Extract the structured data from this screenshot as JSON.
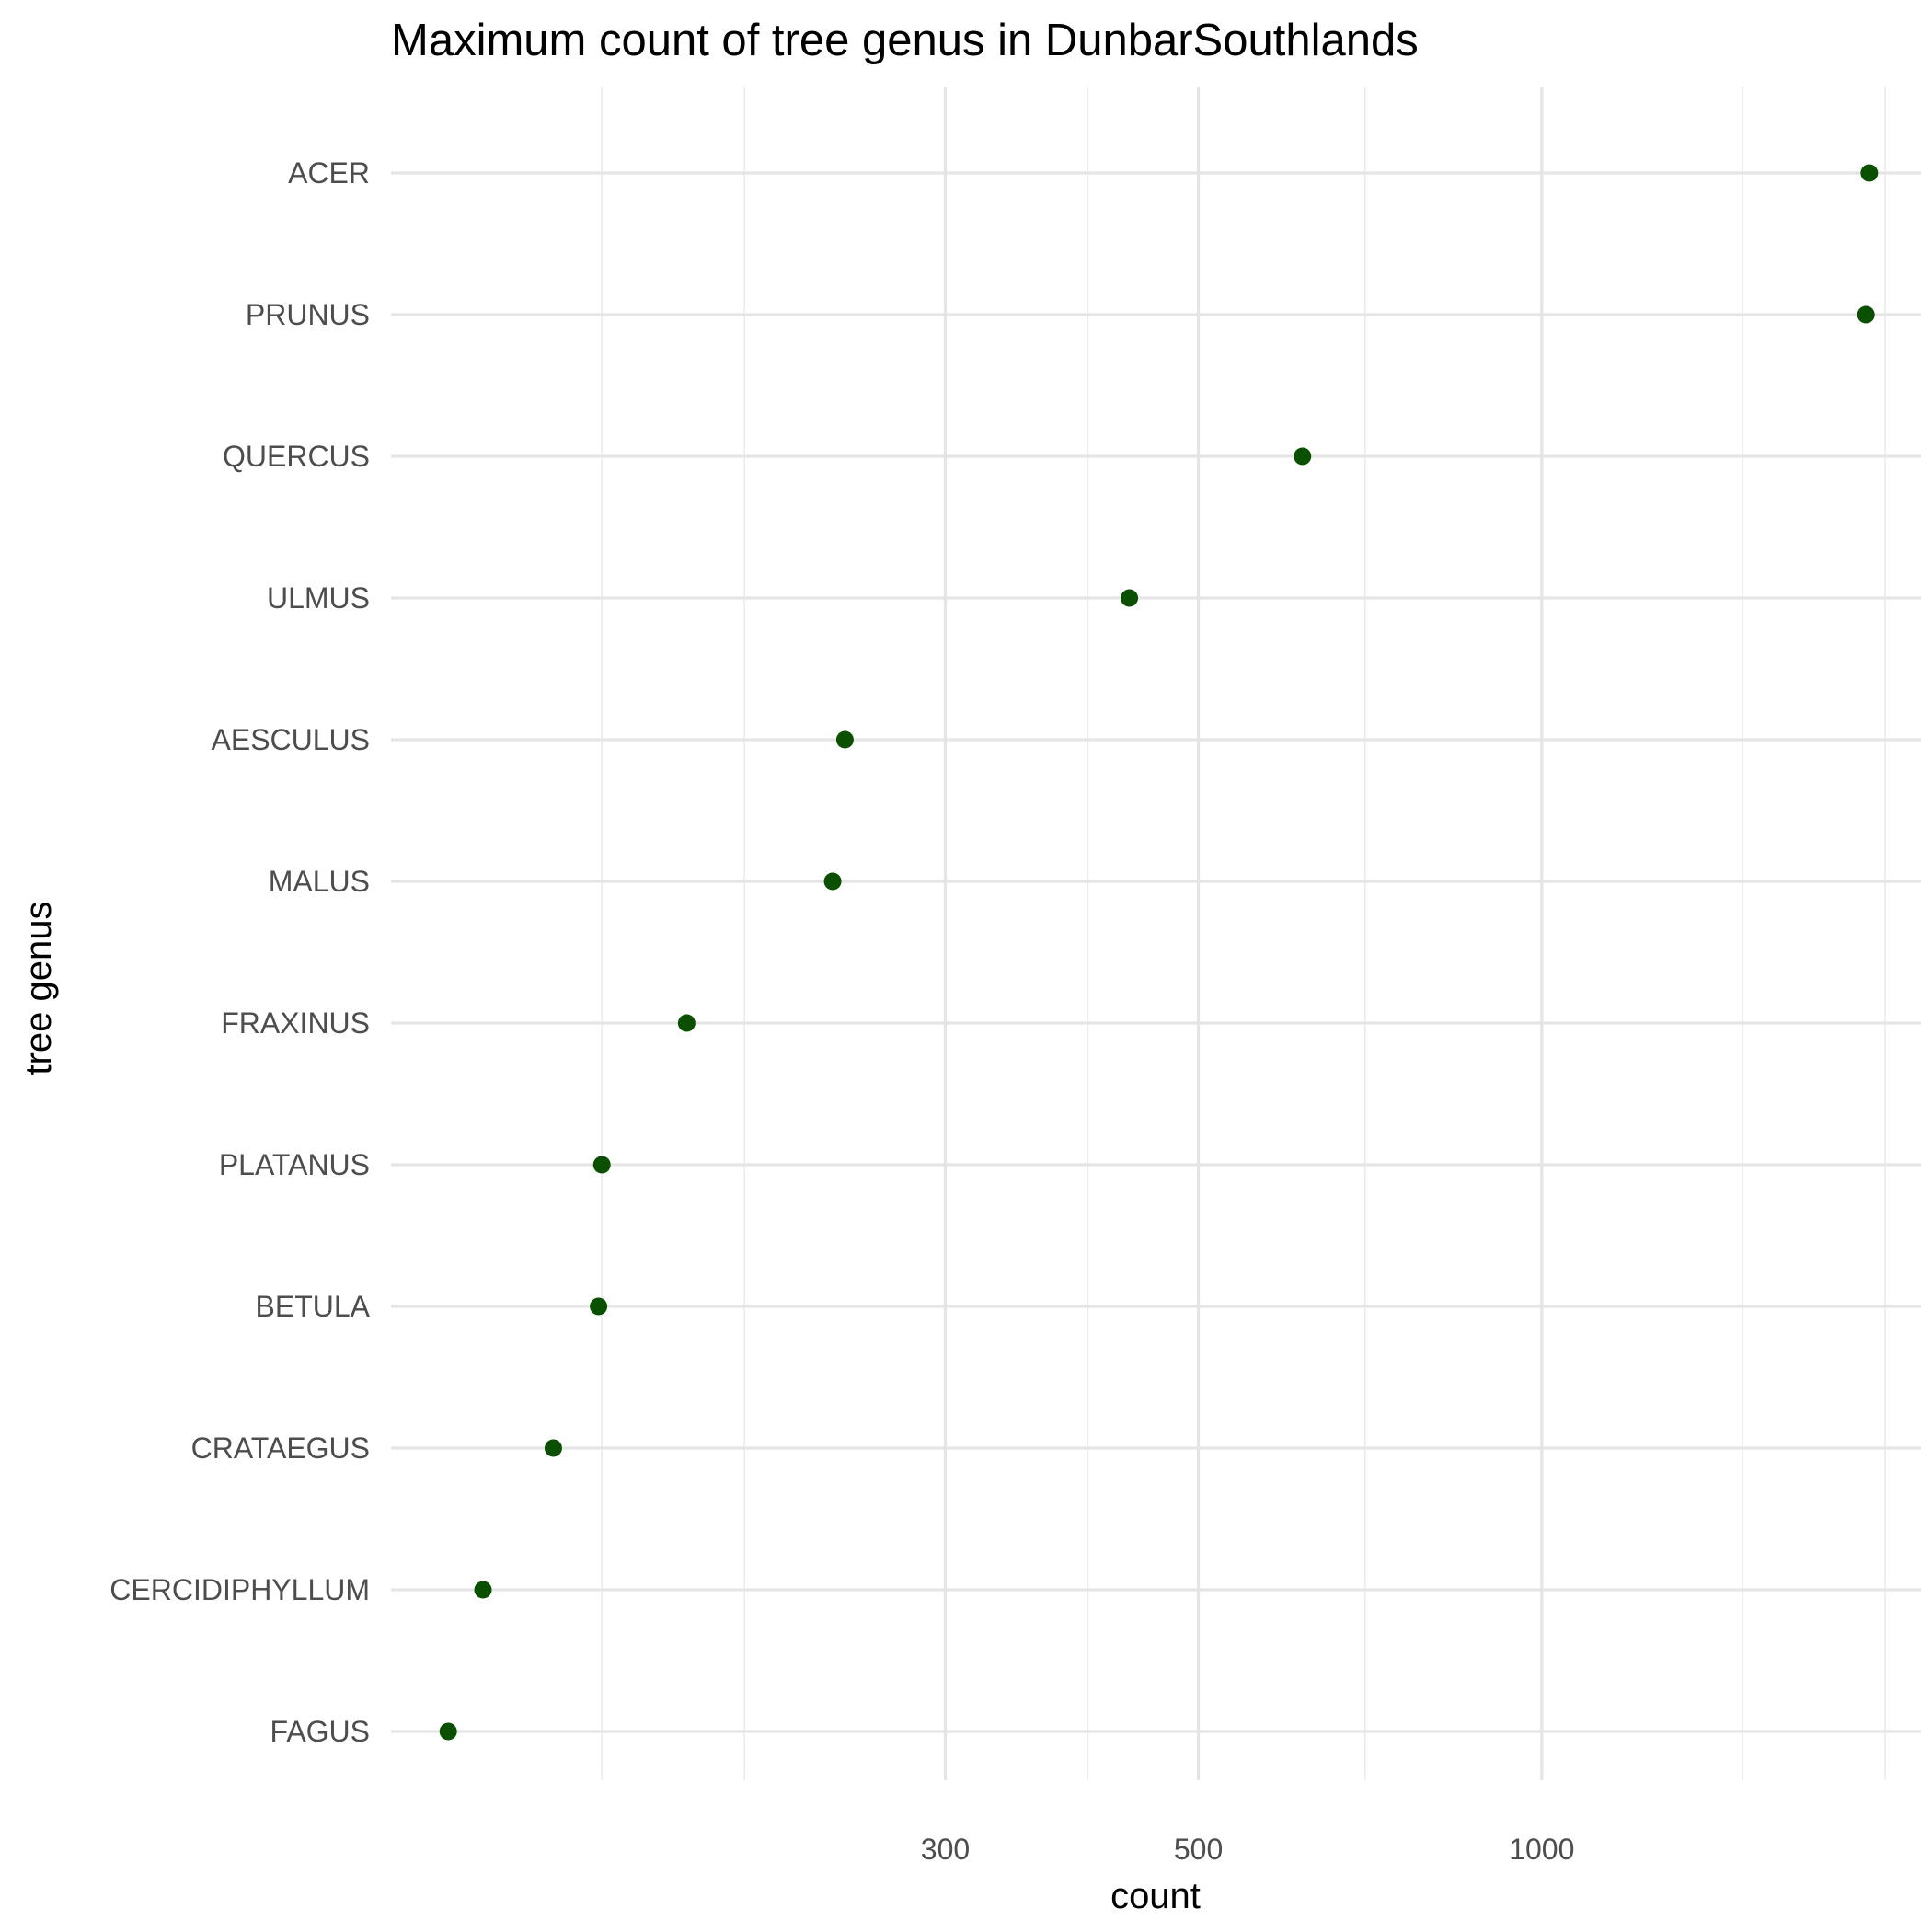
{
  "chart_data": {
    "type": "scatter",
    "title": "Maximum count of tree genus in DunbarSouthlands",
    "xlabel": "count",
    "ylabel": "tree genus",
    "x_scale": "log10",
    "xlim": [
      98,
      2150
    ],
    "x_ticks": [
      300,
      500,
      1000
    ],
    "x_minor_ticks": [
      150,
      200,
      400,
      700,
      1500,
      2000
    ],
    "grid": true,
    "legend": "none",
    "point_color": "#0a5000",
    "categories": [
      "ACER",
      "PRUNUS",
      "QUERCUS",
      "ULMUS",
      "AESCULUS",
      "MALUS",
      "FRAXINUS",
      "PLATANUS",
      "BETULA",
      "CRATAEGUS",
      "CERCIDIPHYLLUM",
      "FAGUS"
    ],
    "values": [
      1937,
      1924,
      617,
      435,
      245,
      239,
      178,
      150,
      149,
      136,
      118,
      110
    ]
  }
}
